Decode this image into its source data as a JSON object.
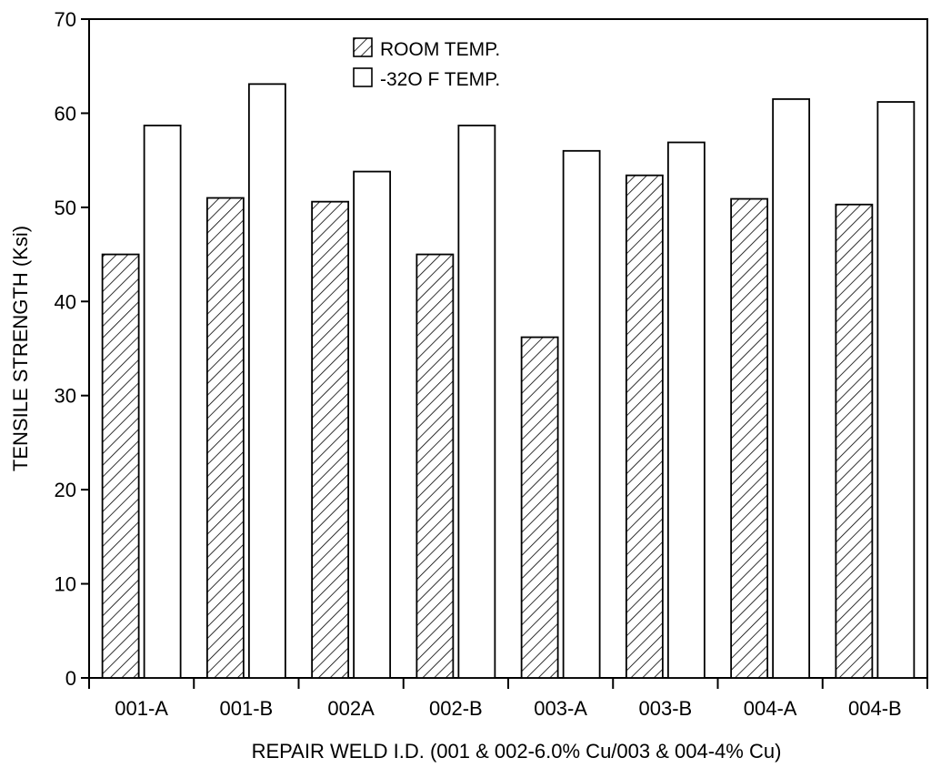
{
  "chart_data": {
    "type": "bar",
    "categories": [
      "001-A",
      "001-B",
      "002A",
      "002-B",
      "003-A",
      "003-B",
      "004-A",
      "004-B"
    ],
    "series": [
      {
        "name": "ROOM TEMP.",
        "pattern": "hatched",
        "values": [
          45.0,
          51.0,
          50.6,
          45.0,
          36.2,
          53.4,
          50.9,
          50.3
        ]
      },
      {
        "name": "-32O F TEMP.",
        "pattern": "open",
        "values": [
          58.7,
          63.1,
          53.8,
          58.7,
          56.0,
          56.9,
          61.5,
          61.2
        ]
      }
    ],
    "title": "",
    "xlabel": "REPAIR WELD I.D. (001 & 002-6.0% Cu/003 & 004-4% Cu)",
    "ylabel": "TENSILE STRENGTH (Ksi)",
    "ylim": [
      0,
      70
    ],
    "yticks": [
      "0",
      "10",
      "20",
      "30",
      "40",
      "50",
      "60",
      "70"
    ],
    "grid": false,
    "legend_position": "top-center",
    "colors": {
      "stroke": "#000000",
      "fill": "#ffffff"
    }
  }
}
